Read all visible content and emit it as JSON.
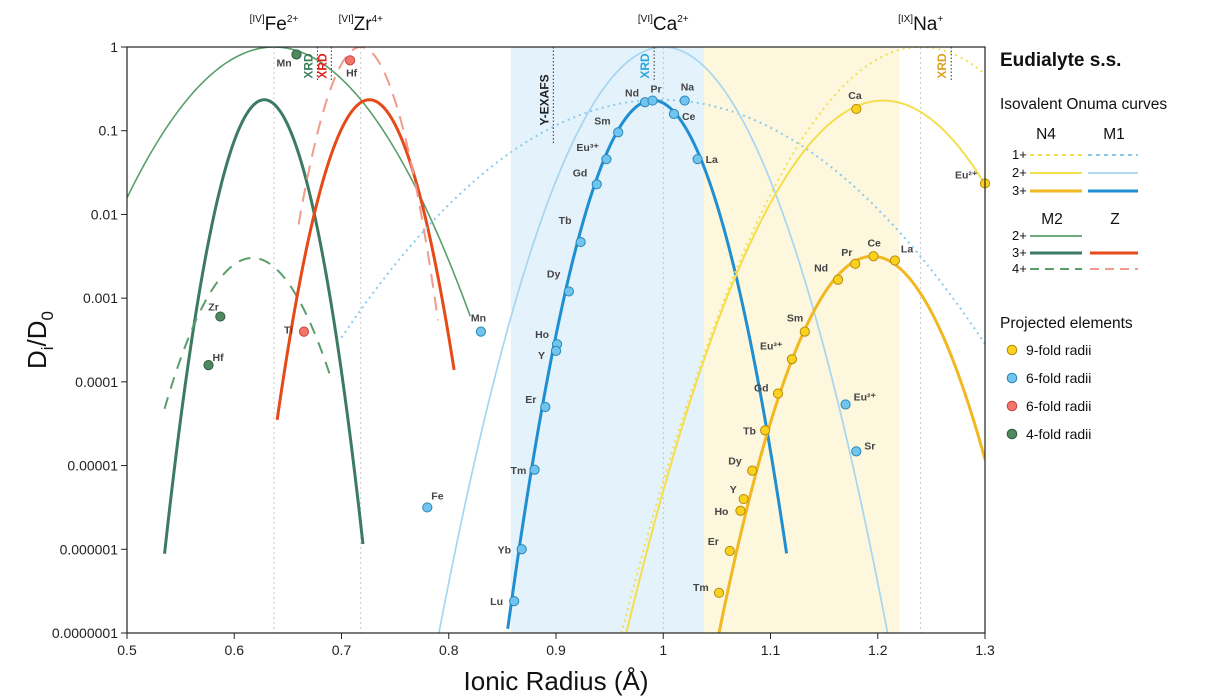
{
  "chart_data": {
    "type": "line",
    "xlabel": "Ionic Radius (Å)",
    "ylabel_main": "D",
    "ylabel_sub_i": "i",
    "ylabel_slash": "/D",
    "ylabel_sub_0": "0",
    "xlim": [
      0.5,
      1.3
    ],
    "ylim_log10": [
      -7,
      0
    ],
    "y_scale": "log",
    "x_ticks": [
      "0.5",
      "0.6",
      "0.7",
      "0.8",
      "0.9",
      "1",
      "1.1",
      "1.2",
      "1.3"
    ],
    "x_tick_values": [
      0.5,
      0.6,
      0.7,
      0.8,
      0.9,
      1.0,
      1.1,
      1.2,
      1.3
    ],
    "y_ticks": [
      "1",
      "0.1",
      "0.01",
      "0.001",
      "0.0001",
      "0.00001",
      "0.000001",
      "0.0000001"
    ],
    "y_tick_values": [
      1,
      0.1,
      0.01,
      0.001,
      0.0001,
      1e-05,
      1e-06,
      1e-07
    ],
    "shaded_regions": [
      {
        "x0": 0.858,
        "x1": 1.038,
        "color": "#e3f2fb"
      },
      {
        "x0": 1.038,
        "x1": 1.22,
        "color": "#fdf7dd"
      }
    ],
    "site_lines": [
      {
        "x": 0.637,
        "pre": "[IV]",
        "ion": "Fe",
        "charge": "2+"
      },
      {
        "x": 0.718,
        "pre": "[VI]",
        "ion": "Zr",
        "charge": "4+"
      },
      {
        "x": 1.0,
        "pre": "[VI]",
        "ion": "Ca",
        "charge": "2+"
      },
      {
        "x": 1.24,
        "pre": "[IX]",
        "ion": "Na",
        "charge": "+"
      }
    ],
    "experimental_markers": [
      {
        "x": 0.671,
        "label": "XRD",
        "color": "#3a7d5a"
      },
      {
        "x": 0.684,
        "label": "XRD",
        "color": "#e0201b"
      },
      {
        "x": 0.891,
        "label": "Y-EXAFS",
        "color": "#222222"
      },
      {
        "x": 0.985,
        "label": "XRD",
        "color": "#29a4e0"
      },
      {
        "x": 1.262,
        "label": "XRD",
        "color": "#d9a21b"
      }
    ],
    "curves": [
      {
        "site": "M2",
        "charge": "2+",
        "r0": 0.637,
        "x0": 0.5,
        "x1": 0.82,
        "log10_peak": 0,
        "log10_at_dr01": -0.96,
        "color": "#5a9e6a",
        "width": 1.6,
        "dash": "solid"
      },
      {
        "site": "M2",
        "charge": "3+",
        "r0": 0.628,
        "x0": 0.535,
        "x1": 0.72,
        "log10_peak": -0.63,
        "log10_at_dr01": -6.9,
        "color": "#3c7a62",
        "width": 3,
        "dash": "solid"
      },
      {
        "site": "M2",
        "charge": "4+",
        "r0": 0.617,
        "x0": 0.535,
        "x1": 0.69,
        "log10_peak": -2.52,
        "log10_at_dr01": -5.2,
        "color": "#5a9e6a",
        "width": 2,
        "dash": "12,9"
      },
      {
        "site": "Z",
        "charge": "3+",
        "r0": 0.726,
        "x0": 0.64,
        "x1": 0.805,
        "log10_peak": -0.63,
        "log10_at_dr01": -5.8,
        "color": "#e64a19",
        "width": 3,
        "dash": "solid"
      },
      {
        "site": "Z",
        "charge": "4+",
        "r0": 0.718,
        "x0": 0.66,
        "x1": 0.79,
        "log10_peak": 0,
        "log10_at_dr01": -6.3,
        "color": "#f09b8e",
        "width": 2,
        "dash": "14,9"
      },
      {
        "site": "M1",
        "charge": "1+",
        "r0": 0.998,
        "x0": 0.7,
        "x1": 1.3,
        "log10_peak": -0.63,
        "log10_at_dr01": -0.95,
        "color": "#8ccbec",
        "width": 2,
        "dash": "2,4"
      },
      {
        "site": "M1",
        "charge": "2+",
        "r0": 1.0,
        "x0": 0.74,
        "x1": 1.22,
        "log10_peak": 0,
        "log10_at_dr01": -1.6,
        "color": "#a6d6f1",
        "width": 1.7,
        "dash": "solid"
      },
      {
        "site": "M1",
        "charge": "3+",
        "r0": 0.99,
        "x0": 0.855,
        "x1": 1.115,
        "log10_peak": -0.635,
        "log10_at_dr01": -4.1,
        "color": "#1f8fd1",
        "width": 3,
        "dash": "solid"
      },
      {
        "site": "N4",
        "charge": "1+",
        "r0": 1.24,
        "x0": 0.87,
        "x1": 1.3,
        "log10_peak": 0,
        "log10_at_dr01": -0.9,
        "color": "#f5de4c",
        "width": 2,
        "dash": "2,4"
      },
      {
        "site": "N4",
        "charge": "2+",
        "r0": 1.205,
        "x0": 0.955,
        "x1": 1.3,
        "log10_peak": -0.64,
        "log10_at_dr01": -1.75,
        "color": "#f5de4c",
        "width": 2,
        "dash": "solid"
      },
      {
        "site": "N4",
        "charge": "3+",
        "r0": 1.195,
        "x0": 1.04,
        "x1": 1.3,
        "log10_peak": -2.5,
        "log10_at_dr01": -4.7,
        "color": "#f2b822",
        "width": 3,
        "dash": "solid"
      }
    ],
    "points": [
      {
        "label": "Mn",
        "x": 0.658,
        "log10_y": -0.09,
        "group": "4-fold",
        "lx": -20,
        "ly": 12
      },
      {
        "label": "Zr",
        "x": 0.587,
        "log10_y": -3.22,
        "group": "4-fold",
        "lx": -12,
        "ly": -6
      },
      {
        "label": "Hf",
        "x": 0.576,
        "log10_y": -3.8,
        "group": "4-fold",
        "lx": 4,
        "ly": -4
      },
      {
        "label": "Hf",
        "x": 0.708,
        "log10_y": -0.16,
        "group": "6-fold-red",
        "lx": -4,
        "ly": 16
      },
      {
        "label": "Ti",
        "x": 0.665,
        "log10_y": -3.4,
        "group": "6-fold-red",
        "lx": -20,
        "ly": 2
      },
      {
        "label": "Mn",
        "x": 0.83,
        "log10_y": -3.4,
        "group": "6-fold",
        "lx": -10,
        "ly": -10
      },
      {
        "label": "Fe",
        "x": 0.78,
        "log10_y": -5.5,
        "group": "6-fold",
        "lx": 4,
        "ly": -8
      },
      {
        "label": "Nd",
        "x": 0.983,
        "log10_y": -0.66,
        "group": "6-fold",
        "lx": -20,
        "ly": -6
      },
      {
        "label": "Pr",
        "x": 0.99,
        "log10_y": -0.64,
        "group": "6-fold",
        "lx": -2,
        "ly": -8
      },
      {
        "label": "Na",
        "x": 1.02,
        "log10_y": -0.64,
        "group": "6-fold",
        "lx": -4,
        "ly": -10
      },
      {
        "label": "Ce",
        "x": 1.01,
        "log10_y": -0.8,
        "group": "6-fold",
        "lx": 8,
        "ly": 6
      },
      {
        "label": "Sm",
        "x": 0.958,
        "log10_y": -1.02,
        "group": "6-fold",
        "lx": -24,
        "ly": -8
      },
      {
        "label": "La",
        "x": 1.032,
        "log10_y": -1.34,
        "group": "6-fold",
        "lx": 8,
        "ly": 4
      },
      {
        "label": "Eu³⁺",
        "x": 0.947,
        "log10_y": -1.34,
        "group": "6-fold",
        "lx": -30,
        "ly": -8
      },
      {
        "label": "Gd",
        "x": 0.938,
        "log10_y": -1.64,
        "group": "6-fold",
        "lx": -24,
        "ly": -8
      },
      {
        "label": "Tb",
        "x": 0.923,
        "log10_y": -2.33,
        "group": "6-fold",
        "lx": -22,
        "ly": -18
      },
      {
        "label": "Dy",
        "x": 0.912,
        "log10_y": -2.92,
        "group": "6-fold",
        "lx": -22,
        "ly": -14
      },
      {
        "label": "Ho",
        "x": 0.901,
        "log10_y": -3.55,
        "group": "6-fold",
        "lx": -22,
        "ly": -6
      },
      {
        "label": "Y",
        "x": 0.9,
        "log10_y": -3.63,
        "group": "6-fold",
        "lx": -18,
        "ly": 8
      },
      {
        "label": "Er",
        "x": 0.89,
        "log10_y": -4.3,
        "group": "6-fold",
        "lx": -20,
        "ly": -4
      },
      {
        "label": "Tm",
        "x": 0.88,
        "log10_y": -5.05,
        "group": "6-fold",
        "lx": -24,
        "ly": 4
      },
      {
        "label": "Yb",
        "x": 0.868,
        "log10_y": -6.0,
        "group": "6-fold",
        "lx": -24,
        "ly": 4
      },
      {
        "label": "Lu",
        "x": 0.861,
        "log10_y": -6.62,
        "group": "6-fold",
        "lx": -24,
        "ly": 4
      },
      {
        "label": "Eu²⁺",
        "x": 1.17,
        "log10_y": -4.27,
        "group": "6-fold",
        "lx": 8,
        "ly": -4
      },
      {
        "label": "Sr",
        "x": 1.18,
        "log10_y": -4.83,
        "group": "6-fold",
        "lx": 8,
        "ly": -2
      },
      {
        "label": "Ca",
        "x": 1.18,
        "log10_y": -0.74,
        "group": "9-fold",
        "lx": -8,
        "ly": -10
      },
      {
        "label": "Eu²⁺",
        "x": 1.3,
        "log10_y": -1.63,
        "group": "9-fold",
        "lx": -30,
        "ly": -5
      },
      {
        "label": "Ce",
        "x": 1.196,
        "log10_y": -2.5,
        "group": "9-fold",
        "lx": -6,
        "ly": -10
      },
      {
        "label": "La",
        "x": 1.216,
        "log10_y": -2.55,
        "group": "9-fold",
        "lx": 6,
        "ly": -8
      },
      {
        "label": "Pr",
        "x": 1.179,
        "log10_y": -2.59,
        "group": "9-fold",
        "lx": -14,
        "ly": -8
      },
      {
        "label": "Nd",
        "x": 1.163,
        "log10_y": -2.78,
        "group": "9-fold",
        "lx": -24,
        "ly": -8
      },
      {
        "label": "Sm",
        "x": 1.132,
        "log10_y": -3.4,
        "group": "9-fold",
        "lx": -18,
        "ly": -10
      },
      {
        "label": "Eu³⁺",
        "x": 1.12,
        "log10_y": -3.73,
        "group": "9-fold",
        "lx": -32,
        "ly": -10
      },
      {
        "label": "Gd",
        "x": 1.107,
        "log10_y": -4.14,
        "group": "9-fold",
        "lx": -24,
        "ly": -2
      },
      {
        "label": "Tb",
        "x": 1.095,
        "log10_y": -4.58,
        "group": "9-fold",
        "lx": -22,
        "ly": 4
      },
      {
        "label": "Dy",
        "x": 1.083,
        "log10_y": -5.06,
        "group": "9-fold",
        "lx": -24,
        "ly": -6
      },
      {
        "label": "Y",
        "x": 1.075,
        "log10_y": -5.4,
        "group": "9-fold",
        "lx": -14,
        "ly": -6
      },
      {
        "label": "Ho",
        "x": 1.072,
        "log10_y": -5.54,
        "group": "9-fold",
        "lx": -26,
        "ly": 4
      },
      {
        "label": "Er",
        "x": 1.062,
        "log10_y": -6.02,
        "group": "9-fold",
        "lx": -22,
        "ly": -6
      },
      {
        "label": "Tm",
        "x": 1.052,
        "log10_y": -6.52,
        "group": "9-fold",
        "lx": -26,
        "ly": -2
      }
    ],
    "point_colors": {
      "9-fold": {
        "fill": "#f8d21c",
        "stroke": "#b98a0c"
      },
      "6-fold": {
        "fill": "#6fc5ee",
        "stroke": "#2b86b8"
      },
      "6-fold-red": {
        "fill": "#f3766b",
        "stroke": "#c8453b"
      },
      "4-fold": {
        "fill": "#4f8a5e",
        "stroke": "#2f5c3c"
      }
    }
  },
  "legend": {
    "title": "Eudialyte s.s.",
    "curves_heading": "Isovalent Onuma curves",
    "col_n4": "N4",
    "col_m1": "M1",
    "col_m2": "M2",
    "col_z": "Z",
    "row_1": "1+",
    "row_2": "2+",
    "row_3": "3+",
    "row_2b": "2+",
    "row_3b": "3+",
    "row_4b": "4+",
    "projected_heading": "Projected elements",
    "items": [
      {
        "label": "9-fold radii",
        "fill": "#f8d21c",
        "stroke": "#b98a0c"
      },
      {
        "label": "6-fold radii",
        "fill": "#6fc5ee",
        "stroke": "#2b86b8"
      },
      {
        "label": "6-fold radii",
        "fill": "#f3766b",
        "stroke": "#c8453b"
      },
      {
        "label": "4-fold radii",
        "fill": "#4f8a5e",
        "stroke": "#2f5c3c"
      }
    ]
  }
}
